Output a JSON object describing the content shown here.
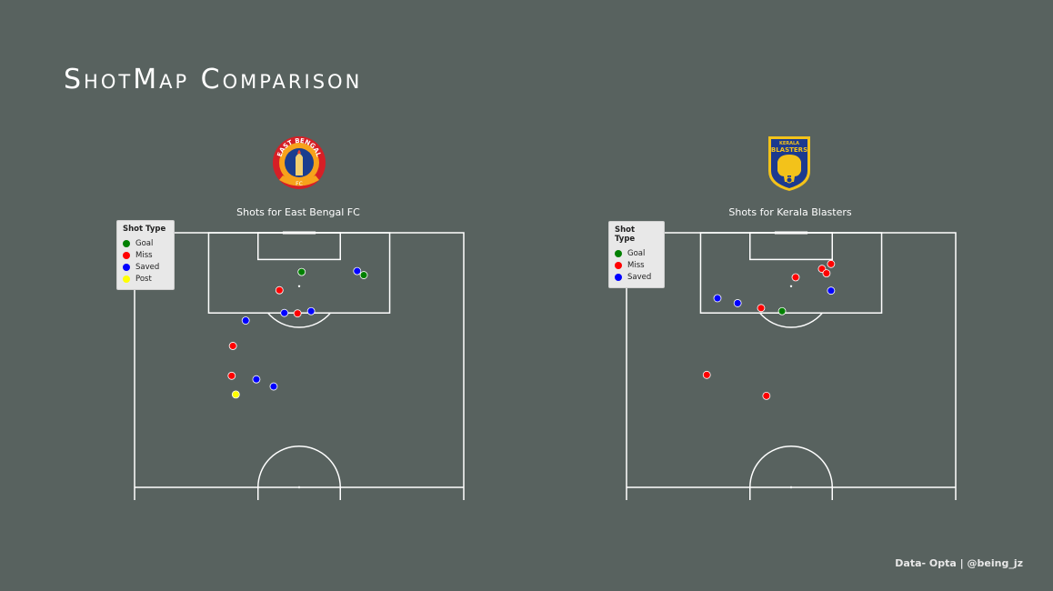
{
  "title": "ShotMap Comparison",
  "credit": "Data- Opta | @being_jz",
  "colors": {
    "background": "#58625f",
    "goal": "#008000",
    "miss": "#ff0000",
    "saved": "#0000ff",
    "post": "#ffff00",
    "lines": "#ffffff"
  },
  "chart_data": [
    {
      "type": "scatter",
      "title": "Shots for East Bengal FC",
      "team_logo_icon": "east-bengal-crest",
      "legend": {
        "title": "Shot Type",
        "placement": "top-left",
        "items": [
          {
            "label": "Goal",
            "color": "#008000"
          },
          {
            "label": "Miss",
            "color": "#ff0000"
          },
          {
            "label": "Saved",
            "color": "#0000ff"
          },
          {
            "label": "Post",
            "color": "#ffff00"
          }
        ]
      },
      "xlim": [
        0,
        80
      ],
      "ylim": [
        60,
        120
      ],
      "shots": [
        {
          "x": 40.6,
          "y": 111.2,
          "outcome": "Goal"
        },
        {
          "x": 54.1,
          "y": 111.4,
          "outcome": "Saved"
        },
        {
          "x": 55.7,
          "y": 110.5,
          "outcome": "Goal"
        },
        {
          "x": 35.2,
          "y": 107.1,
          "outcome": "Miss"
        },
        {
          "x": 36.4,
          "y": 102.0,
          "outcome": "Saved"
        },
        {
          "x": 39.6,
          "y": 101.9,
          "outcome": "Miss"
        },
        {
          "x": 42.9,
          "y": 102.4,
          "outcome": "Saved"
        },
        {
          "x": 27.0,
          "y": 100.3,
          "outcome": "Saved"
        },
        {
          "x": 23.9,
          "y": 94.6,
          "outcome": "Miss"
        },
        {
          "x": 23.6,
          "y": 87.9,
          "outcome": "Miss"
        },
        {
          "x": 29.6,
          "y": 87.1,
          "outcome": "Saved"
        },
        {
          "x": 33.8,
          "y": 85.5,
          "outcome": "Saved"
        },
        {
          "x": 24.6,
          "y": 83.7,
          "outcome": "Post"
        }
      ]
    },
    {
      "type": "scatter",
      "title": "Shots for Kerala Blasters",
      "team_logo_icon": "kerala-blasters-crest",
      "legend": {
        "title": "Shot Type",
        "placement": "top-left",
        "items": [
          {
            "label": "Goal",
            "color": "#008000"
          },
          {
            "label": "Miss",
            "color": "#ff0000"
          },
          {
            "label": "Saved",
            "color": "#0000ff"
          }
        ]
      },
      "xlim": [
        0,
        80
      ],
      "ylim": [
        60,
        120
      ],
      "shots": [
        {
          "x": 49.7,
          "y": 113.0,
          "outcome": "Miss"
        },
        {
          "x": 47.5,
          "y": 111.9,
          "outcome": "Miss"
        },
        {
          "x": 48.6,
          "y": 110.9,
          "outcome": "Miss"
        },
        {
          "x": 41.1,
          "y": 110.0,
          "outcome": "Miss"
        },
        {
          "x": 49.7,
          "y": 107.0,
          "outcome": "Saved"
        },
        {
          "x": 22.1,
          "y": 105.3,
          "outcome": "Saved"
        },
        {
          "x": 27.0,
          "y": 104.2,
          "outcome": "Saved"
        },
        {
          "x": 32.7,
          "y": 103.1,
          "outcome": "Miss"
        },
        {
          "x": 37.8,
          "y": 102.4,
          "outcome": "Goal"
        },
        {
          "x": 19.5,
          "y": 88.1,
          "outcome": "Miss"
        },
        {
          "x": 34.0,
          "y": 83.4,
          "outcome": "Miss"
        }
      ]
    }
  ]
}
